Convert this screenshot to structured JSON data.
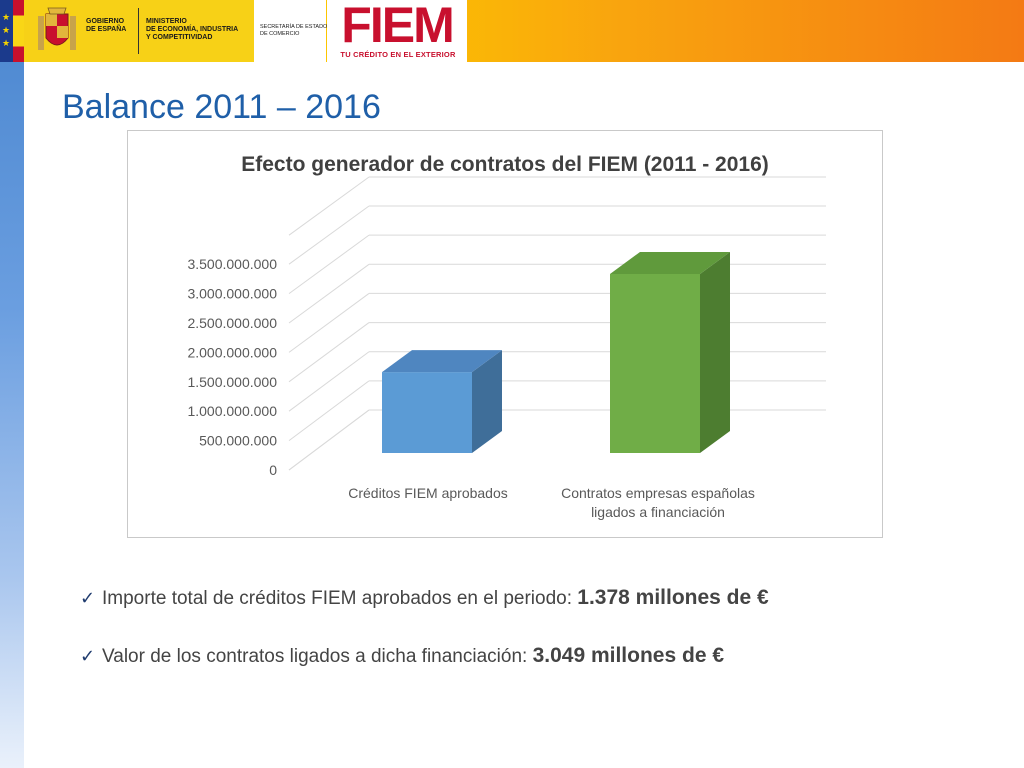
{
  "header": {
    "gov_line1": "GOBIERNO",
    "gov_line2": "DE ESPAÑA",
    "ministry_line1": "MINISTERIO",
    "ministry_line2": "DE ECONOMÍA, INDUSTRIA",
    "ministry_line3": "Y COMPETITIVIDAD",
    "secretary_line1": "SECRETARÍA DE ESTADO",
    "secretary_line2": "DE COMERCIO",
    "brand": "FIEM",
    "tagline": "TU CRÉDITO EN EL EXTERIOR",
    "colors": {
      "header_start": "#fcd400",
      "header_end": "#f47a14",
      "brand_red": "#c8102e"
    }
  },
  "slide": {
    "title": "Balance 2011 – 2016"
  },
  "chart_data": {
    "type": "bar",
    "title": "Efecto generador de contratos del FIEM (2011 - 2016)",
    "categories": [
      "Créditos FIEM aprobados",
      "Contratos empresas españolas ligados a financiación"
    ],
    "category_lines": [
      [
        "Créditos FIEM aprobados"
      ],
      [
        "Contratos empresas españolas",
        "ligados a financiación"
      ]
    ],
    "values": [
      1378000000,
      3049000000
    ],
    "colors": [
      "#5b9bd5",
      "#70ad47"
    ],
    "ylim": [
      0,
      3500000000
    ],
    "yticks": [
      0,
      500000000,
      1000000000,
      1500000000,
      2000000000,
      2500000000,
      3000000000,
      3500000000
    ],
    "ytick_labels": [
      "0",
      "500.000.000",
      "1.000.000.000",
      "1.500.000.000",
      "2.000.000.000",
      "2.500.000.000",
      "3.000.000.000",
      "3.500.000.000"
    ],
    "grid": true,
    "style": "3d",
    "xlabel": "",
    "ylabel": ""
  },
  "bullets": [
    {
      "text": "Importe total de créditos FIEM aprobados en el periodo:  ",
      "strong": "1.378 millones de €"
    },
    {
      "text": "Valor de los contratos ligados a dicha financiación: ",
      "strong": "3.049  millones de €"
    }
  ]
}
